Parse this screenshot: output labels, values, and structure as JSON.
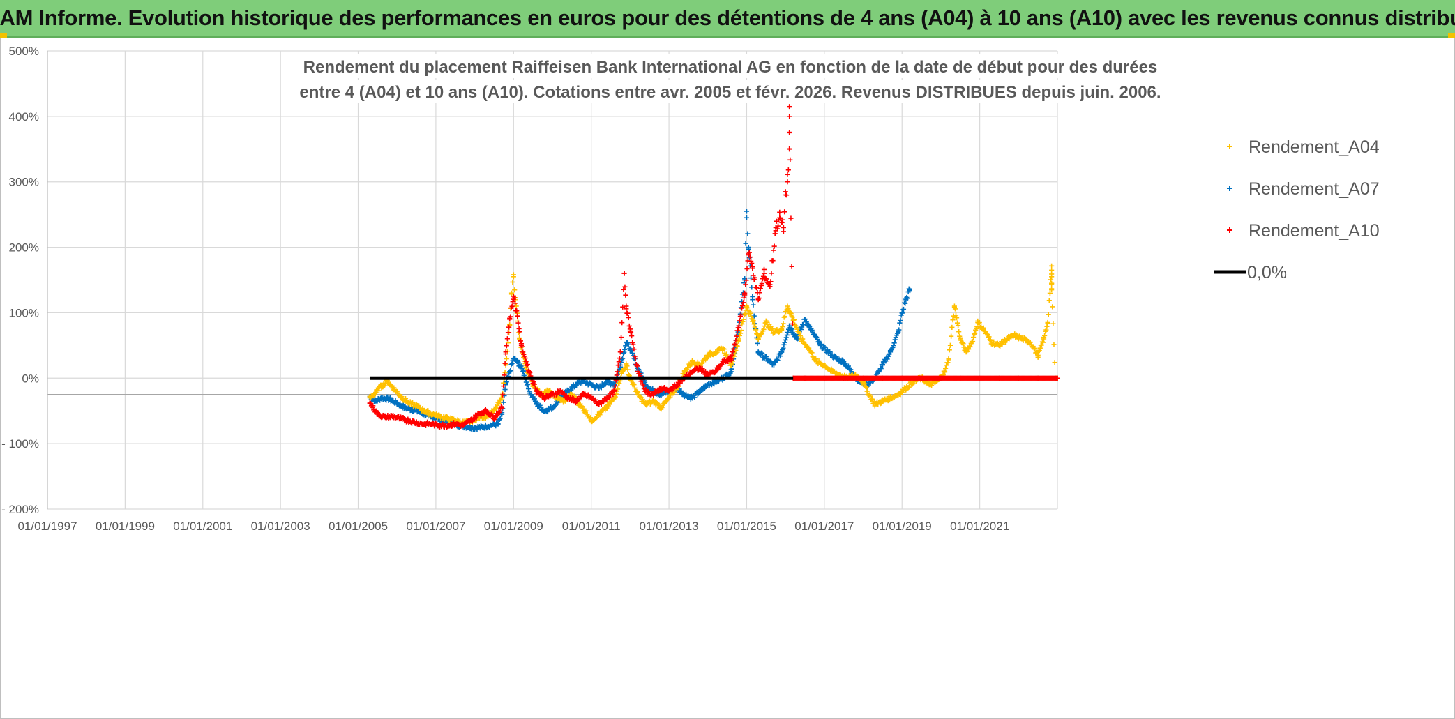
{
  "banner": {
    "title": "ADAM Informe. Evolution historique des performances en euros pour des détentions de 4 ans (A04) à 10 ans (A10) avec les revenus connus distribués"
  },
  "colors": {
    "banner_bg": "#7fcd7a",
    "a04": "#ffc000",
    "a07": "#0070c0",
    "a10": "#ff0000",
    "zero": "#000000",
    "grid": "#d9d9d9",
    "text": "#595959"
  },
  "chart_data": {
    "type": "scatter",
    "title_lines": [
      "Rendement du placement Raiffeisen Bank International AG en fonction de la date de début pour des durées",
      "entre 4 (A04) et 10 ans (A10). Cotations entre avr. 2005 et févr. 2026. Revenus DISTRIBUES depuis juin. 2006."
    ],
    "xlabel": "",
    "ylabel": "",
    "x_range": [
      1997.0,
      2023.0
    ],
    "x_ticks": [
      {
        "value": 1997,
        "label": "01/01/1997"
      },
      {
        "value": 1999,
        "label": "01/01/1999"
      },
      {
        "value": 2001,
        "label": "01/01/2001"
      },
      {
        "value": 2003,
        "label": "01/01/2003"
      },
      {
        "value": 2005,
        "label": "01/01/2005"
      },
      {
        "value": 2007,
        "label": "01/01/2007"
      },
      {
        "value": 2009,
        "label": "01/01/2009"
      },
      {
        "value": 2011,
        "label": "01/01/2011"
      },
      {
        "value": 2013,
        "label": "01/01/2013"
      },
      {
        "value": 2015,
        "label": "01/01/2015"
      },
      {
        "value": 2017,
        "label": "01/01/2017"
      },
      {
        "value": 2019,
        "label": "01/01/2019"
      },
      {
        "value": 2021,
        "label": "01/01/2021"
      }
    ],
    "ylim": [
      -200,
      500
    ],
    "y_ticks": [
      {
        "value": 500,
        "label": "500%"
      },
      {
        "value": 400,
        "label": "400%"
      },
      {
        "value": 300,
        "label": "300%"
      },
      {
        "value": 200,
        "label": "200%"
      },
      {
        "value": 100,
        "label": "100%"
      },
      {
        "value": 0,
        "label": "0%"
      },
      {
        "value": -100,
        "label": "- 100%"
      },
      {
        "value": -200,
        "label": "- 200%"
      }
    ],
    "grid": true,
    "legend_position": "top-right",
    "series": [
      {
        "name": "Rendement_A04",
        "color": "#ffc000",
        "marker": "+",
        "points": [
          [
            2005.3,
            -30
          ],
          [
            2005.45,
            -22
          ],
          [
            2005.6,
            -12
          ],
          [
            2005.75,
            -5
          ],
          [
            2005.9,
            -15
          ],
          [
            2006.1,
            -28
          ],
          [
            2006.3,
            -38
          ],
          [
            2006.5,
            -42
          ],
          [
            2006.7,
            -50
          ],
          [
            2006.9,
            -55
          ],
          [
            2007.1,
            -58
          ],
          [
            2007.3,
            -62
          ],
          [
            2007.5,
            -65
          ],
          [
            2007.7,
            -68
          ],
          [
            2007.9,
            -66
          ],
          [
            2008.1,
            -60
          ],
          [
            2008.3,
            -58
          ],
          [
            2008.5,
            -50
          ],
          [
            2008.7,
            -30
          ],
          [
            2008.8,
            20
          ],
          [
            2008.9,
            80
          ],
          [
            2008.95,
            130
          ],
          [
            2009.0,
            155
          ],
          [
            2009.05,
            120
          ],
          [
            2009.15,
            60
          ],
          [
            2009.3,
            20
          ],
          [
            2009.5,
            -10
          ],
          [
            2009.7,
            -25
          ],
          [
            2009.9,
            -20
          ],
          [
            2010.1,
            -30
          ],
          [
            2010.3,
            -35
          ],
          [
            2010.5,
            -25
          ],
          [
            2010.7,
            -40
          ],
          [
            2010.9,
            -55
          ],
          [
            2011.0,
            -65
          ],
          [
            2011.2,
            -55
          ],
          [
            2011.4,
            -45
          ],
          [
            2011.6,
            -30
          ],
          [
            2011.8,
            10
          ],
          [
            2011.9,
            20
          ],
          [
            2012.0,
            0
          ],
          [
            2012.2,
            -25
          ],
          [
            2012.4,
            -40
          ],
          [
            2012.6,
            -35
          ],
          [
            2012.8,
            -45
          ],
          [
            2013.0,
            -30
          ],
          [
            2013.2,
            -15
          ],
          [
            2013.4,
            10
          ],
          [
            2013.6,
            25
          ],
          [
            2013.8,
            20
          ],
          [
            2014.0,
            35
          ],
          [
            2014.2,
            40
          ],
          [
            2014.4,
            45
          ],
          [
            2014.6,
            20
          ],
          [
            2014.8,
            60
          ],
          [
            2015.0,
            110
          ],
          [
            2015.15,
            90
          ],
          [
            2015.3,
            60
          ],
          [
            2015.5,
            85
          ],
          [
            2015.7,
            70
          ],
          [
            2015.9,
            75
          ],
          [
            2016.05,
            110
          ],
          [
            2016.2,
            90
          ],
          [
            2016.4,
            60
          ],
          [
            2016.6,
            45
          ],
          [
            2016.8,
            25
          ],
          [
            2017.0,
            20
          ],
          [
            2017.2,
            10
          ],
          [
            2017.4,
            5
          ],
          [
            2017.6,
            0
          ],
          [
            2017.8,
            5
          ],
          [
            2018.0,
            -5
          ],
          [
            2018.1,
            -20
          ],
          [
            2018.3,
            -40
          ],
          [
            2018.5,
            -35
          ],
          [
            2018.7,
            -30
          ],
          [
            2018.9,
            -25
          ],
          [
            2019.1,
            -15
          ],
          [
            2019.3,
            -5
          ],
          [
            2019.5,
            0
          ],
          [
            2019.7,
            -10
          ],
          [
            2019.9,
            -5
          ],
          [
            2020.1,
            10
          ],
          [
            2020.2,
            30
          ],
          [
            2020.35,
            110
          ],
          [
            2020.5,
            60
          ],
          [
            2020.65,
            40
          ],
          [
            2020.8,
            55
          ],
          [
            2020.95,
            85
          ],
          [
            2021.1,
            75
          ],
          [
            2021.3,
            55
          ],
          [
            2021.5,
            50
          ],
          [
            2021.7,
            60
          ],
          [
            2021.9,
            65
          ],
          [
            2022.1,
            60
          ],
          [
            2022.3,
            55
          ],
          [
            2022.5,
            35
          ],
          [
            2022.65,
            60
          ],
          [
            2022.75,
            85
          ],
          [
            2022.85,
            165
          ],
          [
            2022.85,
            155
          ],
          [
            2022.85,
            145
          ],
          [
            2022.85,
            135
          ],
          [
            2022.95,
            0
          ],
          [
            2023.0,
            0
          ]
        ]
      },
      {
        "name": "Rendement_A07",
        "color": "#0070c0",
        "marker": "+",
        "points": [
          [
            2005.3,
            -28
          ],
          [
            2005.45,
            -35
          ],
          [
            2005.6,
            -30
          ],
          [
            2005.8,
            -32
          ],
          [
            2006.0,
            -38
          ],
          [
            2006.2,
            -45
          ],
          [
            2006.4,
            -48
          ],
          [
            2006.6,
            -52
          ],
          [
            2006.8,
            -58
          ],
          [
            2007.0,
            -60
          ],
          [
            2007.2,
            -65
          ],
          [
            2007.4,
            -68
          ],
          [
            2007.6,
            -72
          ],
          [
            2007.8,
            -74
          ],
          [
            2008.0,
            -76
          ],
          [
            2008.2,
            -75
          ],
          [
            2008.4,
            -72
          ],
          [
            2008.6,
            -70
          ],
          [
            2008.7,
            -55
          ],
          [
            2008.8,
            -10
          ],
          [
            2008.9,
            10
          ],
          [
            2009.0,
            30
          ],
          [
            2009.1,
            25
          ],
          [
            2009.25,
            10
          ],
          [
            2009.4,
            -20
          ],
          [
            2009.6,
            -40
          ],
          [
            2009.8,
            -50
          ],
          [
            2010.0,
            -45
          ],
          [
            2010.2,
            -30
          ],
          [
            2010.4,
            -20
          ],
          [
            2010.6,
            -10
          ],
          [
            2010.8,
            -5
          ],
          [
            2011.0,
            -10
          ],
          [
            2011.2,
            -15
          ],
          [
            2011.4,
            -5
          ],
          [
            2011.6,
            -10
          ],
          [
            2011.75,
            20
          ],
          [
            2011.9,
            55
          ],
          [
            2012.0,
            45
          ],
          [
            2012.2,
            15
          ],
          [
            2012.4,
            -10
          ],
          [
            2012.6,
            -20
          ],
          [
            2012.8,
            -25
          ],
          [
            2013.0,
            -20
          ],
          [
            2013.2,
            -15
          ],
          [
            2013.4,
            -25
          ],
          [
            2013.6,
            -30
          ],
          [
            2013.8,
            -20
          ],
          [
            2014.0,
            -10
          ],
          [
            2014.2,
            -5
          ],
          [
            2014.4,
            0
          ],
          [
            2014.6,
            10
          ],
          [
            2014.8,
            80
          ],
          [
            2014.95,
            150
          ],
          [
            2015.0,
            255
          ],
          [
            2015.05,
            200
          ],
          [
            2015.15,
            120
          ],
          [
            2015.3,
            40
          ],
          [
            2015.5,
            30
          ],
          [
            2015.7,
            20
          ],
          [
            2015.9,
            40
          ],
          [
            2016.1,
            80
          ],
          [
            2016.3,
            60
          ],
          [
            2016.5,
            90
          ],
          [
            2016.7,
            70
          ],
          [
            2016.9,
            50
          ],
          [
            2017.1,
            40
          ],
          [
            2017.3,
            30
          ],
          [
            2017.5,
            25
          ],
          [
            2017.7,
            10
          ],
          [
            2017.9,
            -5
          ],
          [
            2018.1,
            -10
          ],
          [
            2018.3,
            0
          ],
          [
            2018.5,
            20
          ],
          [
            2018.7,
            40
          ],
          [
            2018.9,
            70
          ],
          [
            2019.0,
            100
          ],
          [
            2019.1,
            120
          ],
          [
            2019.2,
            135
          ]
        ]
      },
      {
        "name": "Rendement_A10",
        "color": "#ff0000",
        "marker": "+",
        "points": [
          [
            2005.3,
            -38
          ],
          [
            2005.5,
            -55
          ],
          [
            2005.7,
            -60
          ],
          [
            2005.9,
            -58
          ],
          [
            2006.1,
            -62
          ],
          [
            2006.3,
            -65
          ],
          [
            2006.5,
            -68
          ],
          [
            2006.7,
            -70
          ],
          [
            2006.9,
            -70
          ],
          [
            2007.1,
            -72
          ],
          [
            2007.3,
            -72
          ],
          [
            2007.5,
            -70
          ],
          [
            2007.7,
            -72
          ],
          [
            2007.9,
            -65
          ],
          [
            2008.1,
            -55
          ],
          [
            2008.3,
            -50
          ],
          [
            2008.5,
            -60
          ],
          [
            2008.7,
            -45
          ],
          [
            2008.8,
            40
          ],
          [
            2008.9,
            90
          ],
          [
            2009.0,
            125
          ],
          [
            2009.1,
            95
          ],
          [
            2009.2,
            50
          ],
          [
            2009.4,
            10
          ],
          [
            2009.6,
            -20
          ],
          [
            2009.8,
            -30
          ],
          [
            2010.0,
            -25
          ],
          [
            2010.2,
            -20
          ],
          [
            2010.4,
            -30
          ],
          [
            2010.6,
            -35
          ],
          [
            2010.8,
            -25
          ],
          [
            2011.0,
            -30
          ],
          [
            2011.2,
            -40
          ],
          [
            2011.4,
            -30
          ],
          [
            2011.6,
            -20
          ],
          [
            2011.75,
            40
          ],
          [
            2011.85,
            160
          ],
          [
            2011.9,
            110
          ],
          [
            2012.0,
            75
          ],
          [
            2012.2,
            10
          ],
          [
            2012.4,
            -20
          ],
          [
            2012.6,
            -25
          ],
          [
            2012.8,
            -15
          ],
          [
            2013.0,
            -20
          ],
          [
            2013.2,
            -10
          ],
          [
            2013.4,
            0
          ],
          [
            2013.6,
            10
          ],
          [
            2013.8,
            15
          ],
          [
            2014.0,
            5
          ],
          [
            2014.2,
            10
          ],
          [
            2014.4,
            25
          ],
          [
            2014.6,
            30
          ],
          [
            2014.8,
            80
          ],
          [
            2014.95,
            130
          ],
          [
            2015.05,
            190
          ],
          [
            2015.15,
            170
          ],
          [
            2015.3,
            120
          ],
          [
            2015.45,
            160
          ],
          [
            2015.6,
            140
          ],
          [
            2015.75,
            230
          ],
          [
            2015.85,
            245
          ],
          [
            2015.95,
            230
          ],
          [
            2016.0,
            280
          ],
          [
            2016.05,
            300
          ],
          [
            2016.1,
            350
          ],
          [
            2016.1,
            375
          ],
          [
            2016.1,
            400
          ],
          [
            2016.1,
            415
          ],
          [
            2016.2,
            0
          ],
          [
            2016.5,
            0
          ],
          [
            2017.0,
            0
          ],
          [
            2017.5,
            0
          ],
          [
            2018.0,
            0
          ],
          [
            2018.5,
            0
          ],
          [
            2019.0,
            0
          ],
          [
            2019.5,
            0
          ],
          [
            2020.0,
            0
          ],
          [
            2020.5,
            0
          ],
          [
            2021.0,
            0
          ],
          [
            2021.5,
            0
          ],
          [
            2022.0,
            0
          ],
          [
            2022.5,
            0
          ],
          [
            2023.0,
            0
          ]
        ]
      },
      {
        "name": "0,0%",
        "color": "#000000",
        "marker": "line",
        "points": [
          [
            2005.3,
            0
          ],
          [
            2023.0,
            0
          ]
        ]
      }
    ]
  }
}
